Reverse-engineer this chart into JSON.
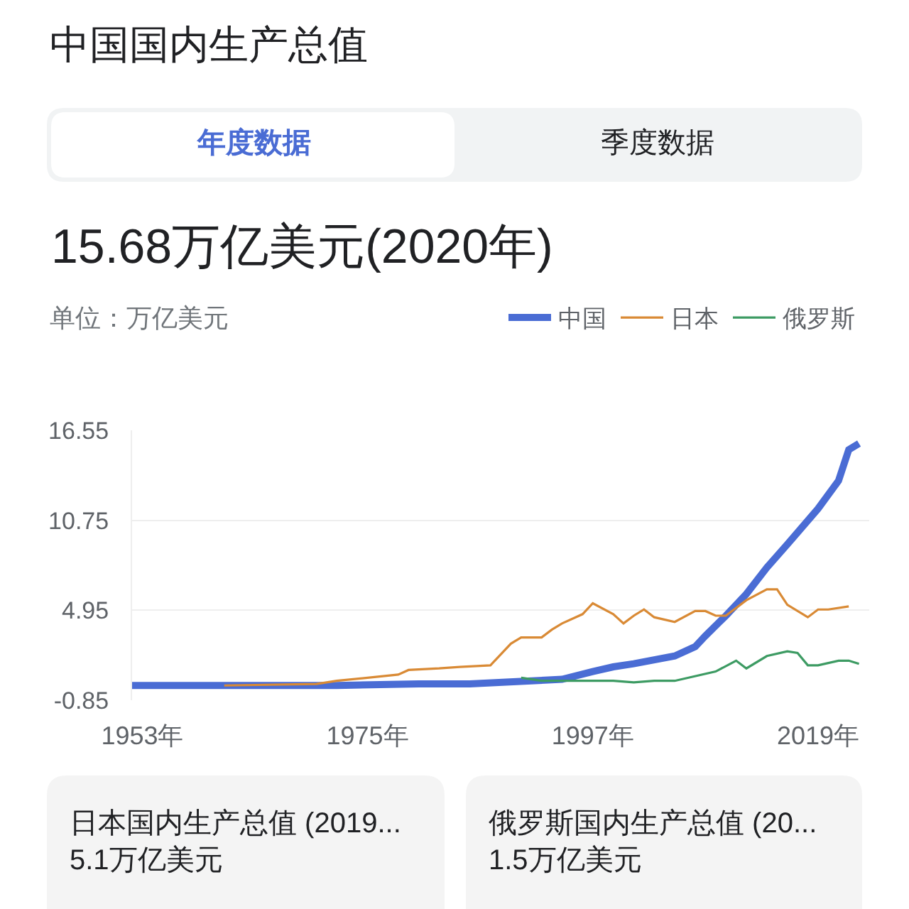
{
  "chart_data": {
    "type": "line",
    "title": "中国国内生产总值",
    "subtitle": "15.68万亿美元(2020年)",
    "ylabel": "单位：万亿美元",
    "annotations": [
      "年度数据",
      "季度数据",
      "日本国内生产总值 (2019...\n5.1万亿美元",
      "俄罗斯国内生产总值 (20...\n1.5万亿美元"
    ],
    "series": [
      {
        "name": "中国",
        "color": "#4a6cd4",
        "x": [
          1952,
          1962,
          1972,
          1980,
          1985,
          1991,
          1994,
          1997,
          1999,
          2001,
          2005,
          2007,
          2008,
          2010,
          2012,
          2014,
          2016,
          2019,
          2021,
          2022,
          2023
        ],
        "values": [
          0.1,
          0.1,
          0.1,
          0.2,
          0.2,
          0.4,
          0.5,
          1.0,
          1.3,
          1.5,
          2.0,
          2.6,
          3.3,
          4.6,
          6.0,
          7.7,
          9.2,
          11.5,
          13.3,
          15.3,
          15.7
        ]
      },
      {
        "name": "日本",
        "color": "#d98a35",
        "x": [
          1961,
          1970,
          1972,
          1975,
          1978,
          1979,
          1982,
          1984,
          1987,
          1988,
          1989,
          1990,
          1992,
          1993,
          1994,
          1996,
          1997,
          1999,
          2000,
          2001,
          2002,
          2003,
          2005,
          2007,
          2008,
          2009,
          2010,
          2012,
          2014,
          2015,
          2016,
          2018,
          2019,
          2020,
          2022
        ],
        "values": [
          0.1,
          0.2,
          0.4,
          0.6,
          0.8,
          1.1,
          1.2,
          1.3,
          1.4,
          2.1,
          2.8,
          3.2,
          3.2,
          3.7,
          4.1,
          4.7,
          5.4,
          4.7,
          4.1,
          4.6,
          5.0,
          4.5,
          4.2,
          4.9,
          4.9,
          4.6,
          4.6,
          5.6,
          6.3,
          6.3,
          5.3,
          4.5,
          5.0,
          5.0,
          5.2
        ]
      },
      {
        "name": "俄罗斯",
        "color": "#3d9b63",
        "x": [
          1990,
          1992,
          1999,
          2001,
          2003,
          2005,
          2009,
          2011,
          2012,
          2014,
          2016,
          2017,
          2018,
          2019,
          2021,
          2022,
          2023
        ],
        "values": [
          0.6,
          0.4,
          0.4,
          0.3,
          0.4,
          0.4,
          1.0,
          1.7,
          1.2,
          2.0,
          2.3,
          2.2,
          1.4,
          1.4,
          1.7,
          1.7,
          1.5
        ]
      }
    ],
    "xlim": [
      1952,
      2024
    ],
    "xticks": [
      {
        "value": 1953,
        "label": "1953年"
      },
      {
        "value": 1975,
        "label": "1975年"
      },
      {
        "value": 1997,
        "label": "1997年"
      },
      {
        "value": 2019,
        "label": "2019年"
      }
    ],
    "ylim": [
      -0.85,
      16.55
    ],
    "yticks": [
      -0.85,
      4.95,
      10.75,
      16.55
    ],
    "grid": "y",
    "legend": "top right",
    "line_style": "solid"
  }
}
